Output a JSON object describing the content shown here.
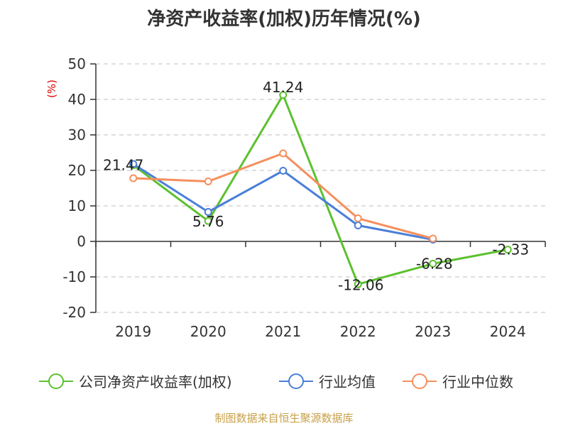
{
  "chart_data": {
    "type": "line",
    "title": "净资产收益率(加权)历年情况(%)",
    "ylabel": "(%)",
    "xlabel": "",
    "categories": [
      "2019",
      "2020",
      "2021",
      "2022",
      "2023",
      "2024"
    ],
    "ylim": [
      -20,
      50
    ],
    "yticks": [
      50,
      40,
      30,
      20,
      10,
      0,
      -10,
      -20
    ],
    "grid": true,
    "legend_position": "bottom",
    "series": [
      {
        "name": "公司净资产收益率(加权)",
        "color": "#5cc12f",
        "values": [
          21.47,
          5.76,
          41.24,
          -12.06,
          -6.28,
          -2.33
        ],
        "labels": [
          "21.47",
          "5.76",
          "41.24",
          "-12.06",
          "-6.28",
          "-2.33"
        ]
      },
      {
        "name": "行业均值",
        "color": "#4a7fd9",
        "values": [
          21.8,
          8.3,
          19.9,
          4.5,
          0.5,
          null
        ]
      },
      {
        "name": "行业中位数",
        "color": "#f58f5e",
        "values": [
          17.8,
          16.9,
          24.8,
          6.5,
          0.8,
          null
        ]
      }
    ]
  },
  "footer": {
    "source": "制图数据来自恒生聚源数据库"
  }
}
